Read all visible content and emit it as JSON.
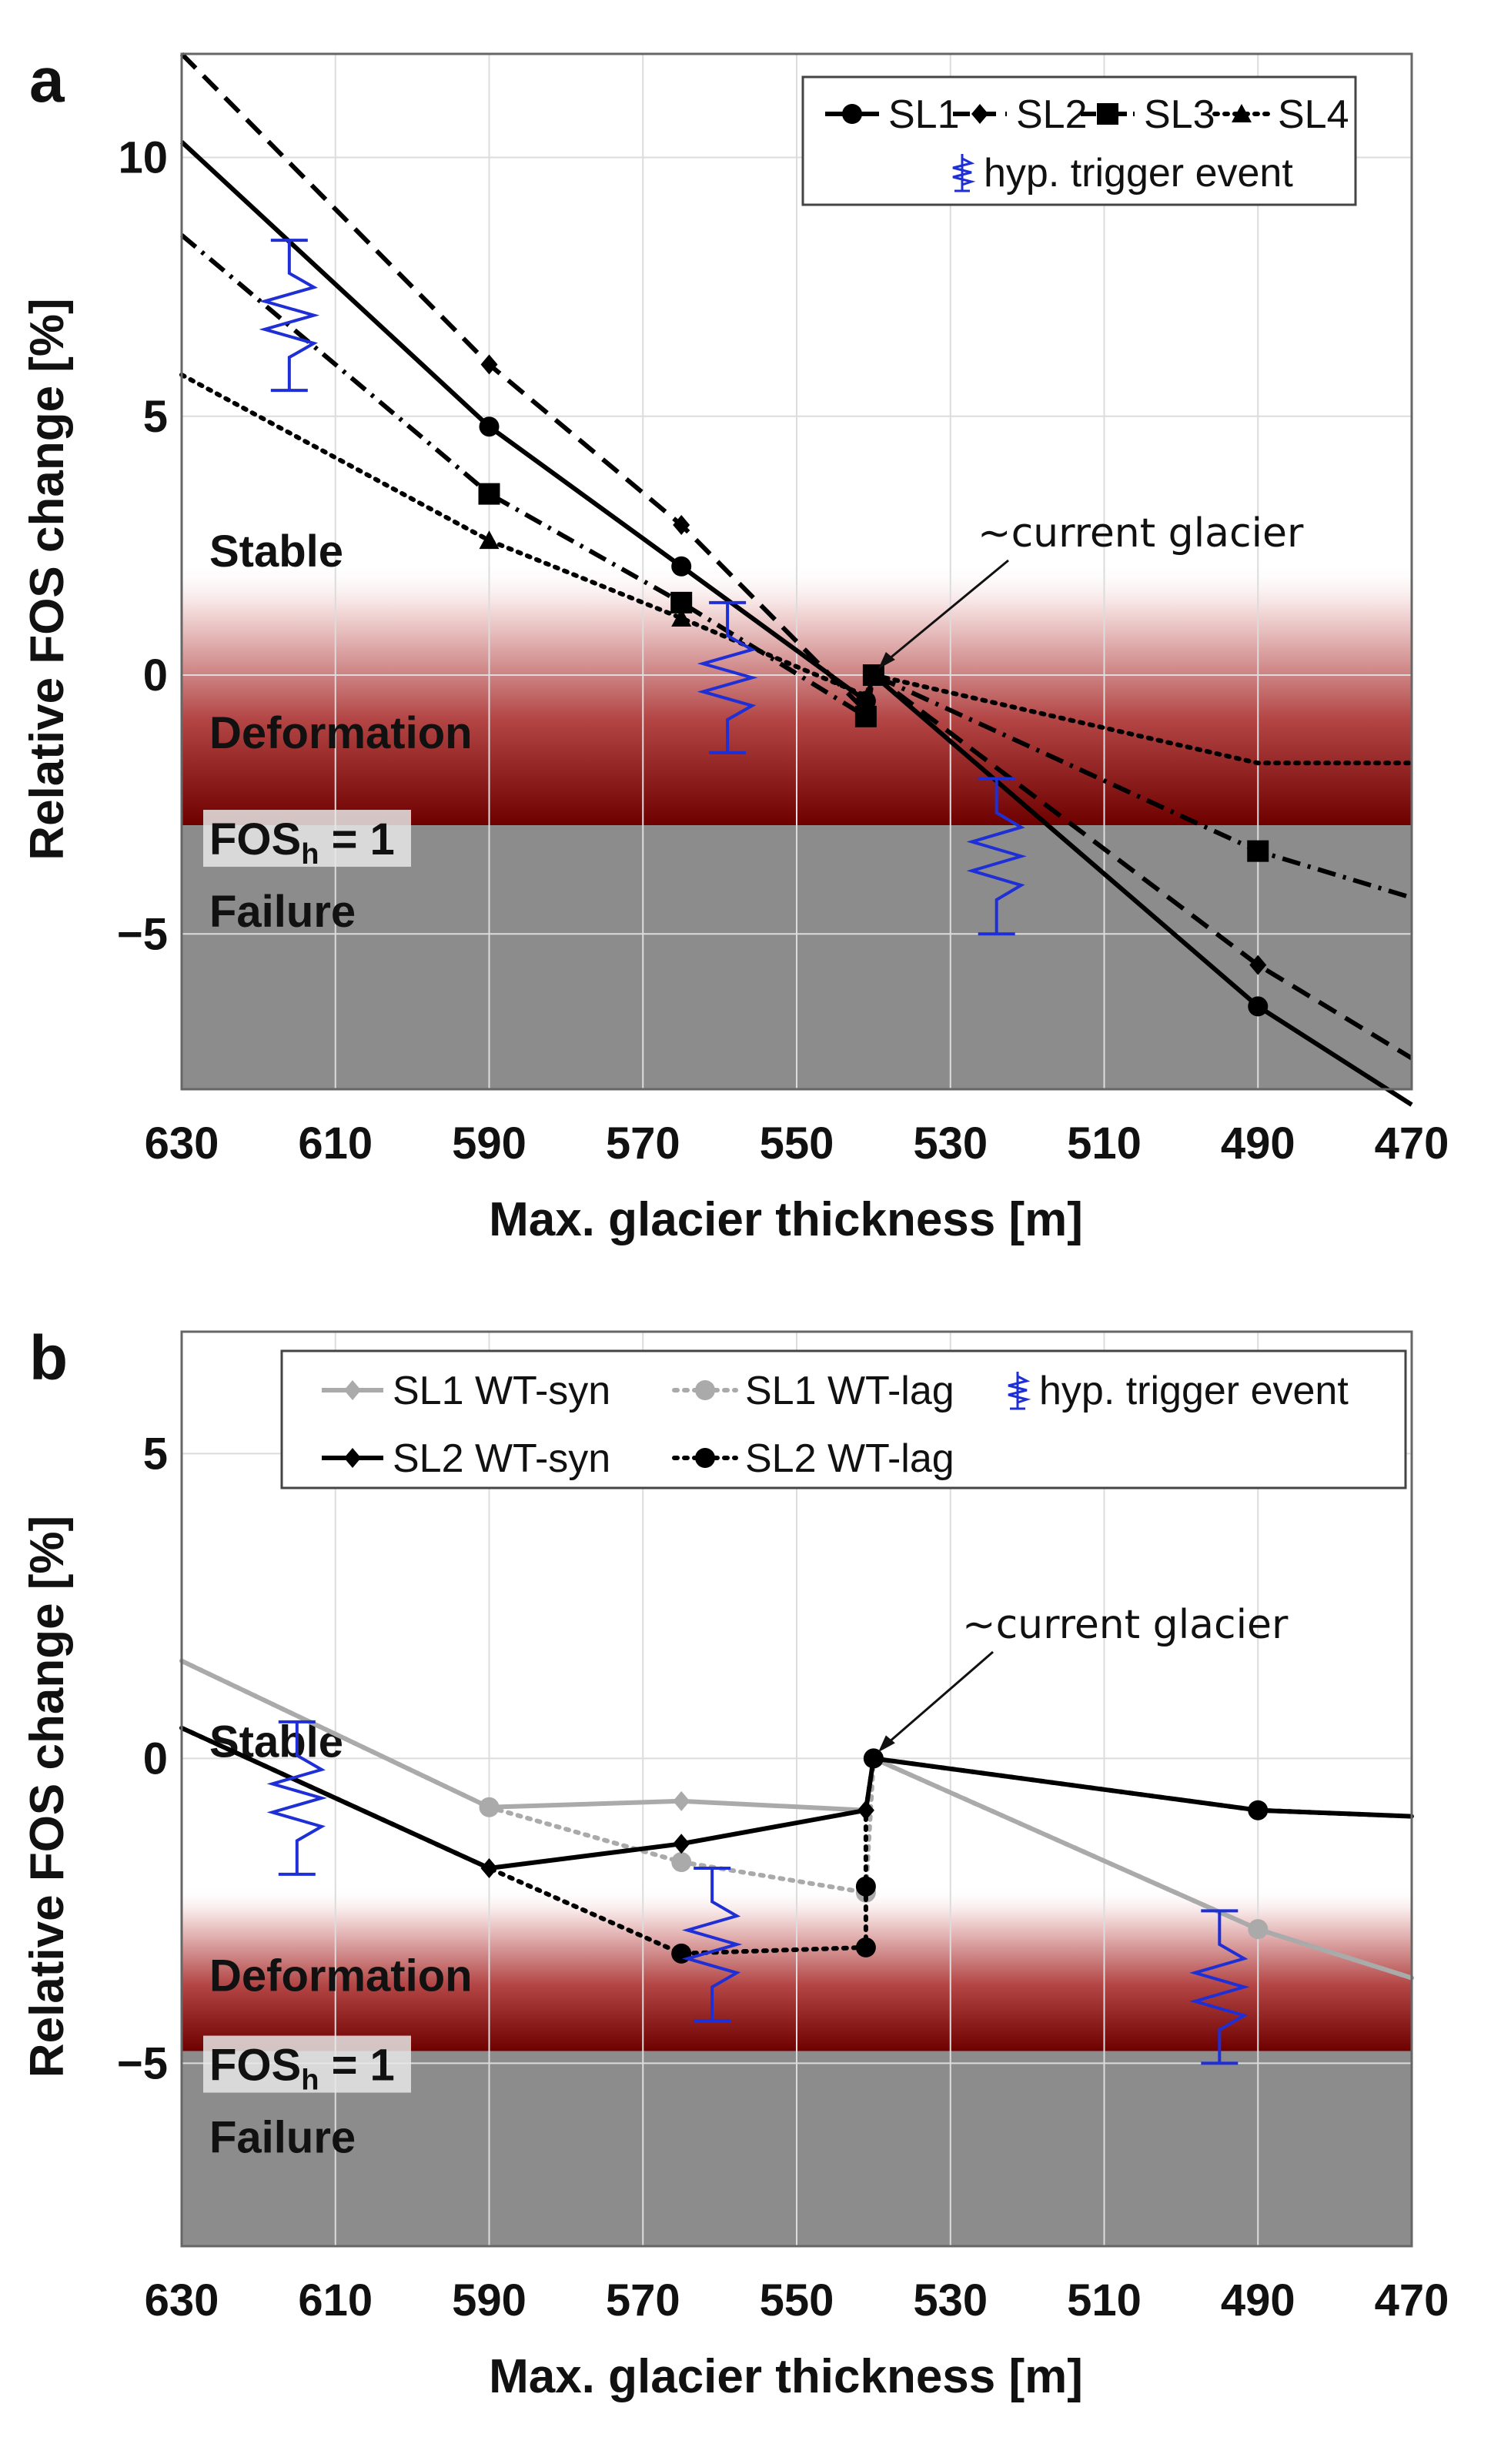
{
  "chart_data": [
    {
      "type": "line",
      "panel_label": "a",
      "xlabel": "Max. glacier thickness [m]",
      "ylabel": "Relative FOS change [%]",
      "xlim": [
        630,
        470
      ],
      "ylim": [
        -8,
        12
      ],
      "xticks": [
        630,
        610,
        590,
        570,
        550,
        530,
        510,
        490,
        470
      ],
      "yticks": [
        10,
        5,
        0,
        -5
      ],
      "ytick_labels": [
        "10",
        "5",
        "0",
        "−5"
      ],
      "grid": true,
      "zones": {
        "stable_label": "Stable",
        "deformation_label": "Deformation",
        "fos_label": "FOS",
        "fos_sub": "h",
        "fos_suffix": " = 1",
        "failure_label": "Failure",
        "failure_top": -2.9,
        "deformation_top": 1.8,
        "gradient_fade_top": 2.2
      },
      "series": [
        {
          "name": "SL1",
          "style": "solid",
          "marker": "circle",
          "x": [
            630,
            590,
            565,
            541,
            540,
            490,
            470
          ],
          "y": [
            10.3,
            4.8,
            2.1,
            -0.5,
            0.0,
            -6.4,
            -8.3
          ],
          "marker_x": [
            590,
            565,
            541,
            540,
            490
          ],
          "marker_y": [
            4.8,
            2.1,
            -0.5,
            0.0,
            -6.4
          ]
        },
        {
          "name": "SL2",
          "style": "dashed",
          "marker": "diamond",
          "x": [
            630,
            590,
            565,
            541,
            540,
            490,
            470
          ],
          "y": [
            12.0,
            6.0,
            2.9,
            -0.7,
            0.0,
            -5.6,
            -7.4
          ],
          "marker_x": [
            590,
            565,
            541,
            540,
            490
          ],
          "marker_y": [
            6.0,
            2.9,
            -0.7,
            0.0,
            -5.6
          ]
        },
        {
          "name": "SL3",
          "style": "dashdot",
          "marker": "square",
          "x": [
            630,
            590,
            565,
            541,
            540,
            490,
            470
          ],
          "y": [
            8.5,
            3.5,
            1.4,
            -0.8,
            0.0,
            -3.4,
            -4.3
          ],
          "marker_x": [
            590,
            565,
            541,
            540,
            490
          ],
          "marker_y": [
            3.5,
            1.4,
            -0.8,
            0.0,
            -3.4
          ]
        },
        {
          "name": "SL4",
          "style": "dotted",
          "marker": "triangle",
          "x": [
            630,
            590,
            565,
            541,
            540,
            490,
            470
          ],
          "y": [
            5.8,
            2.6,
            1.1,
            -0.4,
            0.0,
            -1.7,
            -1.7
          ],
          "marker_x": [
            590,
            565
          ],
          "marker_y": [
            2.6,
            1.1
          ]
        }
      ],
      "trigger_events": [
        {
          "x": 616,
          "y_top": 8.4,
          "y_bottom": 5.5
        },
        {
          "x": 559,
          "y_top": 1.4,
          "y_bottom": -1.5
        },
        {
          "x": 524,
          "y_top": -2.0,
          "y_bottom": -5.0
        }
      ],
      "legend": {
        "placement": "top-right",
        "entries": [
          "SL1",
          "SL2",
          "SL3",
          "SL4"
        ],
        "trigger_label": "hyp. trigger event"
      },
      "annotation": {
        "text": "~current glacier",
        "x": 540,
        "y": 0.0
      }
    },
    {
      "type": "line",
      "panel_label": "b",
      "xlabel": "Max. glacier thickness [m]",
      "ylabel": "Relative FOS change [%]",
      "xlim": [
        630,
        470
      ],
      "ylim": [
        -8,
        7
      ],
      "xticks": [
        630,
        610,
        590,
        570,
        550,
        530,
        510,
        490,
        470
      ],
      "yticks": [
        5,
        0,
        -5
      ],
      "ytick_labels": [
        "5",
        "0",
        "−5"
      ],
      "grid": true,
      "zones": {
        "stable_label": "Stable",
        "deformation_label": "Deformation",
        "fos_label": "FOS",
        "fos_sub": "h",
        "fos_suffix": " = 1",
        "failure_label": "Failure",
        "failure_top": -4.8,
        "deformation_top": -2.5,
        "gradient_fade_top": -2.1
      },
      "series": [
        {
          "name": "SL1 WT-syn",
          "style": "solid",
          "color": "#aaaaaa",
          "marker": "diamond",
          "x": [
            630,
            590,
            565,
            541,
            540,
            490,
            470
          ],
          "y": [
            1.6,
            -0.8,
            -0.7,
            -0.85,
            0.0,
            -2.8,
            -3.6
          ],
          "marker_x": [
            590,
            565,
            541,
            540,
            490
          ],
          "marker_y": [
            -0.8,
            -0.7,
            -0.85,
            0.0,
            -2.8
          ]
        },
        {
          "name": "SL1 WT-lag",
          "style": "dotted",
          "color": "#aaaaaa",
          "marker": "circle",
          "x": [
            630,
            590,
            565,
            541,
            540,
            490,
            470
          ],
          "y": [
            1.6,
            -0.8,
            -1.7,
            -2.2,
            0.0,
            -2.8,
            -3.6
          ],
          "marker_x": [
            590,
            565,
            541,
            540,
            490
          ],
          "marker_y": [
            -0.8,
            -1.7,
            -2.2,
            0.0,
            -2.8
          ]
        },
        {
          "name": "SL2 WT-syn",
          "style": "solid",
          "color": "#000000",
          "marker": "diamond",
          "x": [
            630,
            590,
            565,
            541,
            540,
            490,
            470
          ],
          "y": [
            0.5,
            -1.8,
            -1.4,
            -0.85,
            0.0,
            -0.85,
            -0.95
          ],
          "marker_x": [
            590,
            565,
            541,
            540,
            490
          ],
          "marker_y": [
            -1.8,
            -1.4,
            -0.85,
            0.0,
            -0.85
          ]
        },
        {
          "name": "SL2 WT-lag",
          "style": "dotted",
          "color": "#000000",
          "marker": "circle",
          "x": [
            630,
            590,
            565,
            541,
            541,
            541,
            540,
            490,
            470
          ],
          "y": [
            0.5,
            -1.8,
            -3.2,
            -3.1,
            -2.1,
            -0.85,
            0.0,
            -0.85,
            -0.95
          ],
          "marker_x": [
            565,
            541,
            541,
            540,
            490
          ],
          "marker_y": [
            -3.2,
            -3.1,
            -2.1,
            0.0,
            -0.85
          ]
        }
      ],
      "trigger_events": [
        {
          "x": 615,
          "y_top": 0.6,
          "y_bottom": -1.9
        },
        {
          "x": 561,
          "y_top": -1.8,
          "y_bottom": -4.3
        },
        {
          "x": 495,
          "y_top": -2.5,
          "y_bottom": -5.0
        }
      ],
      "legend": {
        "placement": "top-right",
        "entries": [
          "SL1 WT-syn",
          "SL1 WT-lag",
          "SL2 WT-syn",
          "SL2 WT-lag"
        ],
        "trigger_label": "hyp. trigger event"
      },
      "annotation": {
        "text": "~current glacier",
        "x": 540,
        "y": 0.0
      }
    }
  ]
}
